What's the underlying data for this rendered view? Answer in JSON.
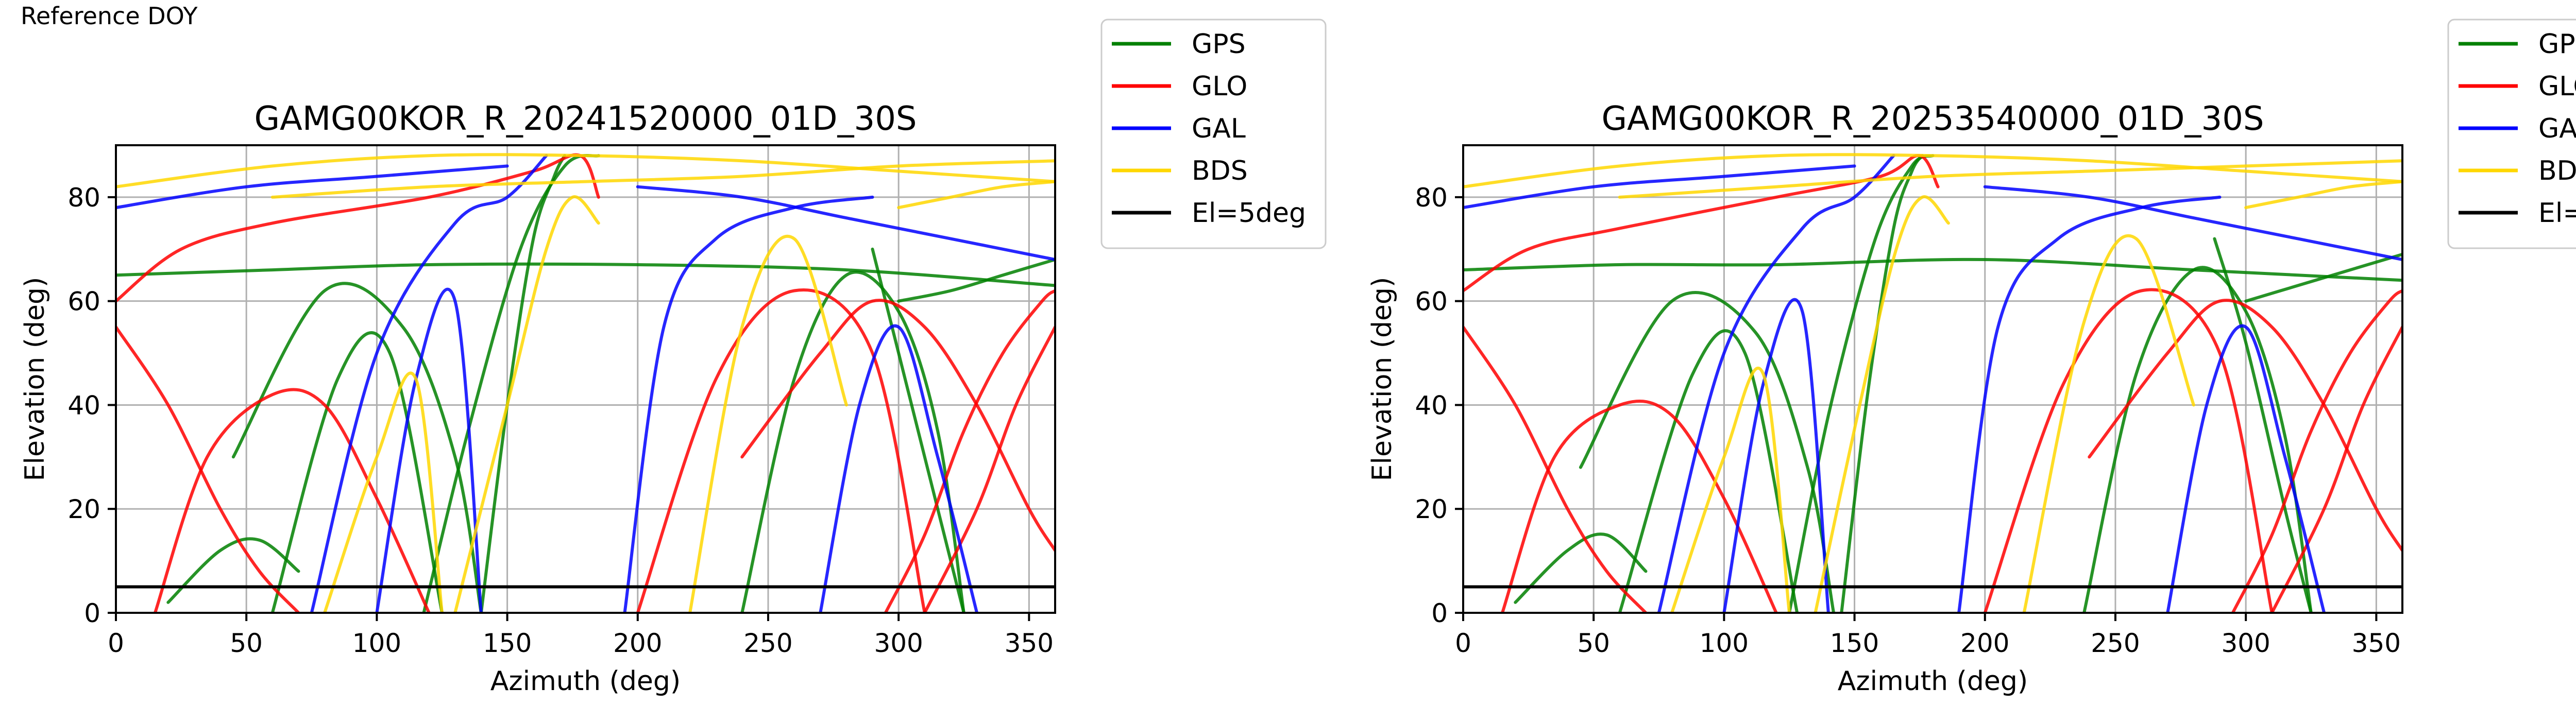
{
  "page_label": "Reference DOY",
  "legend_entries": [
    {
      "label": "GPS",
      "color": "#008000"
    },
    {
      "label": "GLO",
      "color": "#ff0000"
    },
    {
      "label": "GAL",
      "color": "#0000ff"
    },
    {
      "label": "BDS",
      "color": "#ffd700"
    },
    {
      "label": "El=5deg",
      "color": "#000000"
    }
  ],
  "chart_data": [
    {
      "type": "line",
      "title": "GAMG00KOR_R_20241520000_01D_30S",
      "xlabel": "Azimuth (deg)",
      "ylabel": "Elevation (deg)",
      "xlim": [
        0,
        360
      ],
      "ylim": [
        0,
        90
      ],
      "xticks": [
        0,
        50,
        100,
        150,
        200,
        250,
        300,
        350
      ],
      "yticks": [
        0,
        20,
        40,
        60,
        80
      ],
      "grid": true,
      "legend_position": "outside-top-right",
      "reference_line": {
        "label": "El=5deg",
        "y": 5
      },
      "series": [
        {
          "name": "GPS",
          "color": "#008000",
          "tracks": [
            {
              "x": [
                118,
                135,
                155,
                172,
                185
              ],
              "y": [
                0,
                35,
                70,
                86,
                88
              ]
            },
            {
              "x": [
                140,
                150,
                160,
                168,
                172
              ],
              "y": [
                0,
                40,
                72,
                84,
                88
              ]
            },
            {
              "x": [
                45,
                80,
                110,
                130,
                140
              ],
              "y": [
                30,
                62,
                55,
                30,
                0
              ]
            },
            {
              "x": [
                60,
                85,
                105,
                125
              ],
              "y": [
                0,
                45,
                50,
                0
              ]
            },
            {
              "x": [
                290,
                300,
                315,
                325
              ],
              "y": [
                70,
                50,
                20,
                0
              ]
            },
            {
              "x": [
                240,
                260,
                280,
                300,
                315,
                325
              ],
              "y": [
                0,
                45,
                65,
                58,
                35,
                0
              ]
            },
            {
              "x": [
                0,
                60,
                120,
                200,
                280,
                360
              ],
              "y": [
                65,
                66,
                67,
                67,
                66,
                63
              ]
            },
            {
              "x": [
                300,
                320,
                340,
                360
              ],
              "y": [
                60,
                62,
                65,
                68
              ]
            },
            {
              "x": [
                20,
                40,
                55,
                70
              ],
              "y": [
                2,
                12,
                14,
                8
              ]
            }
          ]
        },
        {
          "name": "GLO",
          "color": "#ff0000",
          "tracks": [
            {
              "x": [
                15,
                35,
                60,
                80,
                100,
                120
              ],
              "y": [
                0,
                30,
                42,
                40,
                22,
                0
              ]
            },
            {
              "x": [
                0,
                20,
                40,
                55,
                70
              ],
              "y": [
                55,
                40,
                20,
                8,
                0
              ]
            },
            {
              "x": [
                0,
                25,
                60,
                120,
                160,
                178,
                185
              ],
              "y": [
                60,
                70,
                75,
                80,
                85,
                88,
                80
              ]
            },
            {
              "x": [
                240,
                270,
                290,
                310,
                330,
                350,
                360
              ],
              "y": [
                30,
                50,
                60,
                55,
                40,
                20,
                12
              ]
            },
            {
              "x": [
                295,
                310,
                325,
                340,
                355,
                360
              ],
              "y": [
                0,
                15,
                35,
                50,
                60,
                62
              ]
            },
            {
              "x": [
                200,
                230,
                260,
                290,
                310
              ],
              "y": [
                0,
                45,
                62,
                50,
                0
              ]
            },
            {
              "x": [
                310,
                330,
                345,
                360
              ],
              "y": [
                0,
                20,
                40,
                55
              ]
            }
          ]
        },
        {
          "name": "GAL",
          "color": "#0000ff",
          "tracks": [
            {
              "x": [
                75,
                100,
                130,
                150,
                165
              ],
              "y": [
                0,
                50,
                75,
                80,
                88
              ]
            },
            {
              "x": [
                195,
                210,
                230,
                260,
                290
              ],
              "y": [
                0,
                55,
                72,
                78,
                80
              ]
            },
            {
              "x": [
                100,
                115,
                130,
                140
              ],
              "y": [
                0,
                45,
                60,
                0
              ]
            },
            {
              "x": [
                270,
                285,
                300,
                315,
                330
              ],
              "y": [
                0,
                40,
                55,
                30,
                0
              ]
            },
            {
              "x": [
                0,
                50,
                100,
                150
              ],
              "y": [
                78,
                82,
                84,
                86
              ]
            },
            {
              "x": [
                200,
                240,
                280,
                320,
                360
              ],
              "y": [
                82,
                80,
                76,
                72,
                68
              ]
            }
          ]
        },
        {
          "name": "BDS",
          "color": "#ffd700",
          "tracks": [
            {
              "x": [
                0,
                60,
                120,
                180,
                240,
                300,
                360
              ],
              "y": [
                82,
                86,
                88,
                88,
                87,
                85,
                83
              ]
            },
            {
              "x": [
                60,
                120,
                180,
                240,
                300,
                360
              ],
              "y": [
                80,
                82,
                83,
                84,
                86,
                87
              ]
            },
            {
              "x": [
                130,
                150,
                165,
                175,
                185
              ],
              "y": [
                0,
                40,
                70,
                80,
                75
              ]
            },
            {
              "x": [
                220,
                240,
                260,
                280
              ],
              "y": [
                0,
                55,
                72,
                40
              ]
            },
            {
              "x": [
                80,
                100,
                115,
                125
              ],
              "y": [
                0,
                30,
                45,
                0
              ]
            },
            {
              "x": [
                300,
                320,
                340,
                360
              ],
              "y": [
                78,
                80,
                82,
                83
              ]
            }
          ]
        }
      ]
    },
    {
      "type": "line",
      "title": "GAMG00KOR_R_20253540000_01D_30S",
      "xlabel": "Azimuth (deg)",
      "ylabel": "Elevation (deg)",
      "xlim": [
        0,
        360
      ],
      "ylim": [
        0,
        90
      ],
      "xticks": [
        0,
        50,
        100,
        150,
        200,
        250,
        300,
        350
      ],
      "yticks": [
        0,
        20,
        40,
        60,
        80
      ],
      "grid": true,
      "legend_position": "outside-top-right",
      "reference_line": {
        "label": "El=5deg",
        "y": 5
      },
      "series": [
        {
          "name": "GPS",
          "color": "#008000",
          "tracks": [
            {
              "x": [
                125,
                140,
                158,
                172,
                180
              ],
              "y": [
                0,
                38,
                72,
                86,
                88
              ]
            },
            {
              "x": [
                145,
                155,
                165,
                172,
                176
              ],
              "y": [
                0,
                42,
                74,
                85,
                88
              ]
            },
            {
              "x": [
                45,
                80,
                112,
                132,
                142
              ],
              "y": [
                28,
                60,
                54,
                28,
                0
              ]
            },
            {
              "x": [
                60,
                88,
                108,
                128
              ],
              "y": [
                0,
                46,
                50,
                0
              ]
            },
            {
              "x": [
                288,
                300,
                315,
                325
              ],
              "y": [
                72,
                52,
                20,
                0
              ]
            },
            {
              "x": [
                238,
                258,
                280,
                300,
                315,
                325
              ],
              "y": [
                0,
                46,
                66,
                58,
                34,
                0
              ]
            },
            {
              "x": [
                0,
                60,
                120,
                200,
                280,
                360
              ],
              "y": [
                66,
                67,
                67,
                68,
                66,
                64
              ]
            },
            {
              "x": [
                300,
                320,
                340,
                360
              ],
              "y": [
                60,
                63,
                66,
                69
              ]
            },
            {
              "x": [
                20,
                40,
                55,
                70
              ],
              "y": [
                2,
                12,
                15,
                8
              ]
            }
          ]
        },
        {
          "name": "GLO",
          "color": "#ff0000",
          "tracks": [
            {
              "x": [
                15,
                35,
                60,
                80,
                100,
                120
              ],
              "y": [
                0,
                30,
                40,
                38,
                22,
                0
              ]
            },
            {
              "x": [
                0,
                20,
                40,
                55,
                70
              ],
              "y": [
                55,
                40,
                20,
                8,
                0
              ]
            },
            {
              "x": [
                0,
                25,
                60,
                120,
                160,
                175,
                182
              ],
              "y": [
                62,
                70,
                74,
                80,
                84,
                88,
                82
              ]
            },
            {
              "x": [
                240,
                270,
                290,
                310,
                330,
                350,
                360
              ],
              "y": [
                30,
                50,
                60,
                55,
                40,
                20,
                12
              ]
            },
            {
              "x": [
                295,
                310,
                325,
                340,
                355,
                360
              ],
              "y": [
                0,
                15,
                35,
                50,
                60,
                62
              ]
            },
            {
              "x": [
                200,
                230,
                260,
                290,
                310
              ],
              "y": [
                0,
                44,
                62,
                50,
                0
              ]
            },
            {
              "x": [
                310,
                330,
                345,
                360
              ],
              "y": [
                0,
                20,
                40,
                55
              ]
            }
          ]
        },
        {
          "name": "GAL",
          "color": "#0000ff",
          "tracks": [
            {
              "x": [
                75,
                100,
                130,
                150,
                165
              ],
              "y": [
                0,
                50,
                74,
                80,
                88
              ]
            },
            {
              "x": [
                190,
                205,
                228,
                260,
                290
              ],
              "y": [
                0,
                55,
                72,
                78,
                80
              ]
            },
            {
              "x": [
                100,
                115,
                130,
                140
              ],
              "y": [
                0,
                44,
                58,
                0
              ]
            },
            {
              "x": [
                270,
                285,
                300,
                315,
                330
              ],
              "y": [
                0,
                40,
                55,
                30,
                0
              ]
            },
            {
              "x": [
                0,
                50,
                100,
                150
              ],
              "y": [
                78,
                82,
                84,
                86
              ]
            },
            {
              "x": [
                200,
                240,
                280,
                320,
                360
              ],
              "y": [
                82,
                80,
                76,
                72,
                68
              ]
            }
          ]
        },
        {
          "name": "BDS",
          "color": "#ffd700",
          "tracks": [
            {
              "x": [
                0,
                60,
                120,
                180,
                240,
                300,
                360
              ],
              "y": [
                82,
                86,
                88,
                88,
                87,
                85,
                83
              ]
            },
            {
              "x": [
                60,
                120,
                180,
                240,
                300,
                360
              ],
              "y": [
                80,
                82,
                84,
                85,
                86,
                87
              ]
            },
            {
              "x": [
                135,
                152,
                166,
                176,
                186
              ],
              "y": [
                0,
                40,
                70,
                80,
                75
              ]
            },
            {
              "x": [
                215,
                238,
                258,
                280
              ],
              "y": [
                0,
                56,
                72,
                40
              ]
            },
            {
              "x": [
                80,
                100,
                115,
                125
              ],
              "y": [
                0,
                30,
                46,
                0
              ]
            },
            {
              "x": [
                300,
                320,
                340,
                360
              ],
              "y": [
                78,
                80,
                82,
                83
              ]
            }
          ]
        }
      ]
    }
  ]
}
